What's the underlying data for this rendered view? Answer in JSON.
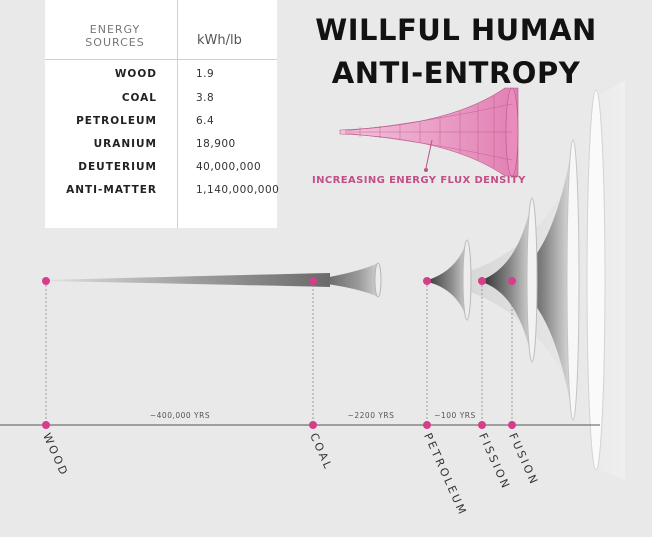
{
  "title_line1": "WILLFUL HUMAN",
  "title_line2": "ANTI-ENTROPY",
  "table": {
    "header_source": "ENERGY SOURCES",
    "header_unit": "kWh/lb",
    "rows": [
      {
        "source": "WOOD",
        "value": "1.9"
      },
      {
        "source": "COAL",
        "value": "3.8"
      },
      {
        "source": "PETROLEUM",
        "value": "6.4"
      },
      {
        "source": "URANIUM",
        "value": "18,900"
      },
      {
        "source": "DEUTERIUM",
        "value": "40,000,000"
      },
      {
        "source": "ANTI-MATTER",
        "value": "1,140,000,000"
      }
    ]
  },
  "flux_label": "INCREASING ENERGY FLUX DENSITY",
  "eras": [
    "~400,000 YRS",
    "~2200 YRS",
    "~100 YRS"
  ],
  "sources": [
    "WOOD",
    "COAL",
    "PETROLEUM",
    "FISSION",
    "FUSION"
  ],
  "colors": {
    "accent": "#d63d8c",
    "flux_pink": "#c24f86",
    "background": "#e9e9ea"
  }
}
